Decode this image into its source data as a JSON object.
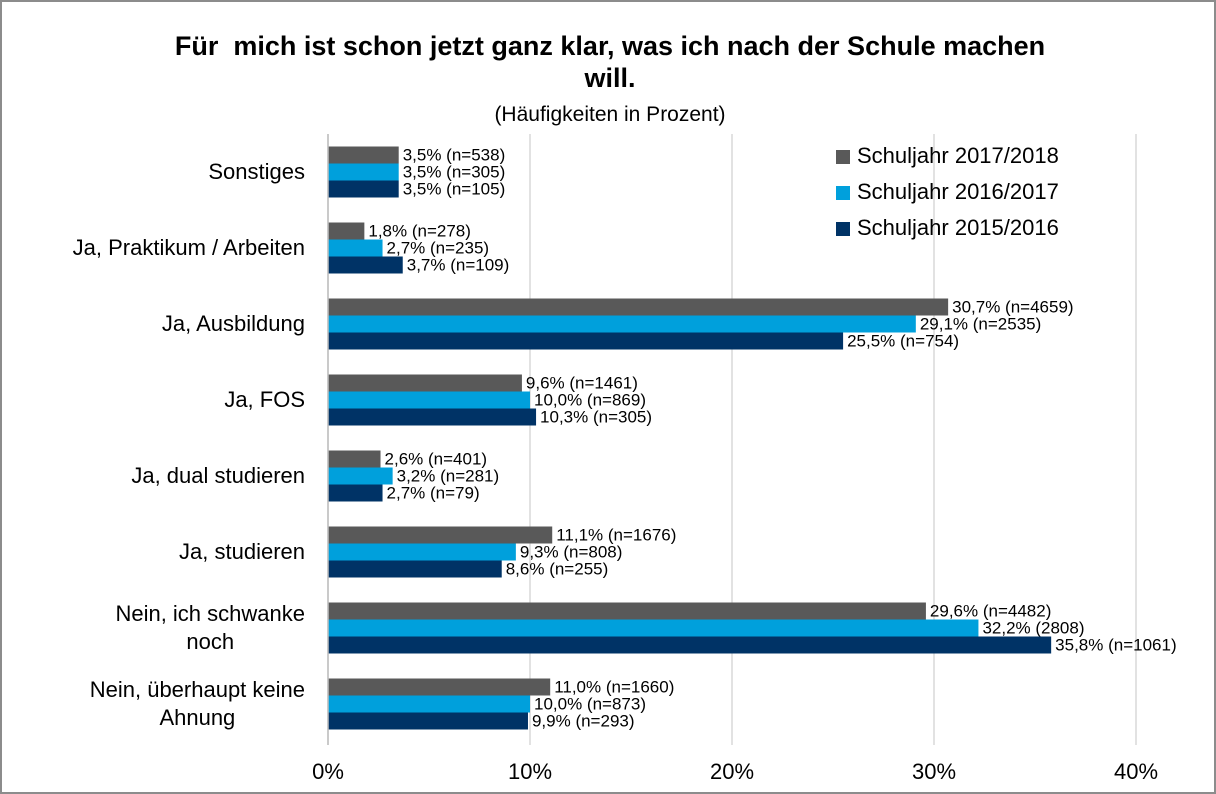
{
  "chart_data": {
    "type": "hbar",
    "title": "Für  mich ist schon jetzt ganz klar, was ich nach der Schule machen will.",
    "subtitle": "(Häufigkeiten in Prozent)",
    "categories": [
      "Sonstiges",
      "Ja, Praktikum / Arbeiten",
      "Ja, Ausbildung",
      "Ja, FOS",
      "Ja, dual studieren",
      "Ja, studieren",
      "Nein, ich schwanke\nnoch",
      "Nein, überhaupt keine\nAhnung"
    ],
    "series": [
      {
        "name": "Schuljahr 2017/2018",
        "color": "#595959",
        "values": [
          3.5,
          1.8,
          30.7,
          9.6,
          2.6,
          11.1,
          29.6,
          11.0
        ],
        "value_labels": [
          "3,5% (n=538)",
          "1,8% (n=278)",
          "30,7% (n=4659)",
          "9,6% (n=1461)",
          "2,6% (n=401)",
          "11,1% (n=1676)",
          "29,6% (n=4482)",
          "11,0% (n=1660)"
        ]
      },
      {
        "name": "Schuljahr 2016/2017",
        "color": "#00a0dc",
        "values": [
          3.5,
          2.7,
          29.1,
          10.0,
          3.2,
          9.3,
          32.2,
          10.0
        ],
        "value_labels": [
          "3,5% (n=305)",
          "2,7% (n=235)",
          "29,1% (n=2535)",
          "10,0% (n=869)",
          "3,2% (n=281)",
          "9,3% (n=808)",
          "32,2% (2808)",
          "10,0% (n=873)"
        ]
      },
      {
        "name": "Schuljahr 2015/2016",
        "color": "#003366",
        "values": [
          3.5,
          3.7,
          25.5,
          10.3,
          2.7,
          8.6,
          35.8,
          9.9
        ],
        "value_labels": [
          "3,5% (n=105)",
          "3,7% (n=109)",
          "25,5% (n=754)",
          "10,3% (n=305)",
          "2,7% (n=79)",
          "8,6% (n=255)",
          "35,8% (n=1061)",
          "9,9% (n=293)"
        ]
      }
    ],
    "xlim": [
      0,
      40
    ],
    "xticks": [
      {
        "value": 0,
        "label": "0%"
      },
      {
        "value": 10,
        "label": "10%"
      },
      {
        "value": 20,
        "label": "20%"
      },
      {
        "value": 30,
        "label": "30%"
      },
      {
        "value": 40,
        "label": "40%"
      }
    ],
    "grid": true,
    "legend": "top-right"
  }
}
